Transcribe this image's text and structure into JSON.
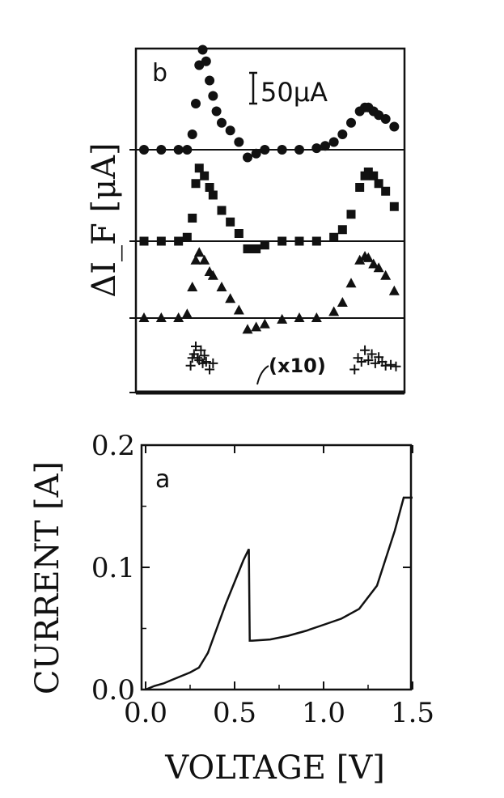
{
  "chart_data": [
    {
      "panel": "b",
      "type": "scatter",
      "ylabel": "ΔI_F [μA]",
      "scale_bar_label": "50μA",
      "annotation": "(x10)",
      "xlim": [
        0.0,
        1.5
      ],
      "offset_spacing_uA": 115,
      "series": [
        {
          "marker": "circle",
          "x": [
            0.0,
            0.1,
            0.2,
            0.25,
            0.28,
            0.3,
            0.32,
            0.34,
            0.36,
            0.38,
            0.4,
            0.42,
            0.45,
            0.5,
            0.55,
            0.6,
            0.65,
            0.7,
            0.8,
            0.9,
            1.0,
            1.05,
            1.1,
            1.15,
            1.2,
            1.25,
            1.28,
            1.3,
            1.33,
            1.36,
            1.4,
            1.45
          ],
          "y": [
            0,
            0,
            0,
            0,
            20,
            60,
            110,
            130,
            115,
            90,
            70,
            50,
            35,
            25,
            10,
            -10,
            -5,
            0,
            0,
            0,
            2,
            5,
            10,
            20,
            35,
            50,
            55,
            55,
            50,
            45,
            40,
            30
          ]
        },
        {
          "marker": "square",
          "x": [
            0.0,
            0.1,
            0.2,
            0.25,
            0.28,
            0.3,
            0.32,
            0.35,
            0.38,
            0.4,
            0.45,
            0.5,
            0.55,
            0.6,
            0.65,
            0.7,
            0.8,
            0.9,
            1.0,
            1.1,
            1.15,
            1.2,
            1.25,
            1.28,
            1.3,
            1.33,
            1.36,
            1.4,
            1.45
          ],
          "y": [
            0,
            0,
            0,
            5,
            30,
            75,
            95,
            85,
            70,
            60,
            40,
            25,
            10,
            -10,
            -10,
            -5,
            0,
            0,
            0,
            5,
            15,
            35,
            70,
            85,
            90,
            85,
            75,
            65,
            45
          ]
        },
        {
          "marker": "triangle",
          "x": [
            0.0,
            0.1,
            0.2,
            0.25,
            0.28,
            0.3,
            0.32,
            0.35,
            0.38,
            0.4,
            0.45,
            0.5,
            0.55,
            0.6,
            0.65,
            0.7,
            0.8,
            0.9,
            1.0,
            1.1,
            1.15,
            1.2,
            1.25,
            1.28,
            1.3,
            1.33,
            1.36,
            1.4,
            1.45
          ],
          "y": [
            0,
            0,
            0,
            5,
            40,
            75,
            85,
            75,
            60,
            55,
            40,
            25,
            10,
            -15,
            -12,
            -8,
            -2,
            0,
            0,
            8,
            20,
            45,
            75,
            80,
            78,
            70,
            65,
            55,
            35
          ]
        },
        {
          "marker": "plus",
          "x": [
            0.27,
            0.28,
            0.29,
            0.3,
            0.31,
            0.32,
            0.33,
            0.34,
            0.35,
            0.36,
            0.38,
            0.4,
            1.22,
            1.24,
            1.26,
            1.28,
            1.3,
            1.32,
            1.34,
            1.36,
            1.38,
            1.4,
            1.43,
            1.46
          ],
          "y": [
            35,
            45,
            50,
            60,
            45,
            42,
            55,
            38,
            48,
            40,
            30,
            38,
            30,
            45,
            40,
            55,
            42,
            50,
            38,
            46,
            40,
            35,
            36,
            34
          ]
        }
      ]
    },
    {
      "panel": "a",
      "type": "line",
      "xlabel": "VOLTAGE [V]",
      "ylabel": "CURRENT [A]",
      "xlim": [
        0.0,
        1.5
      ],
      "ylim": [
        0.0,
        0.2
      ],
      "xticks": [
        "0.0",
        "0.5",
        "1.0",
        "1.5"
      ],
      "yticks": [
        "0.0",
        "0.1",
        "0.2"
      ],
      "x": [
        0.0,
        0.05,
        0.1,
        0.15,
        0.2,
        0.25,
        0.3,
        0.35,
        0.4,
        0.45,
        0.5,
        0.55,
        0.58,
        0.585,
        0.6,
        0.7,
        0.8,
        0.9,
        1.0,
        1.1,
        1.2,
        1.3,
        1.4,
        1.45,
        1.5
      ],
      "y": [
        0.0,
        0.003,
        0.005,
        0.008,
        0.011,
        0.014,
        0.018,
        0.03,
        0.05,
        0.07,
        0.088,
        0.106,
        0.115,
        0.04,
        0.04,
        0.041,
        0.044,
        0.048,
        0.053,
        0.058,
        0.066,
        0.085,
        0.13,
        0.157,
        0.157
      ]
    }
  ]
}
